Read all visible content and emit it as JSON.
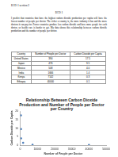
{
  "header": {
    "left": "ECO 1 section 2",
    "title": "ECO 1"
  },
  "paragraph": "I predict that countries that have the highest carbon dioxide production per capita will have the lowest number of people per doctor. The richer a country is, the more industry it has and the more doctors it can pay for. Poorer countries produce less carbon dioxide and have more people for each doctor, so health care is harder to get. My data shows this relationship between carbon dioxide production and the number of people per doctor.",
  "table": {
    "columns": [
      "Country",
      "Number of People per Doctor",
      "Carbon Dioxide per Capita"
    ],
    "rows": [
      [
        "United States",
        "390",
        "17.5"
      ],
      [
        "Japan",
        "476",
        "9.5"
      ],
      [
        "Mexico",
        "508",
        "4.0"
      ],
      [
        "India",
        "1666",
        "1.4"
      ],
      [
        "Kenya",
        "7142",
        "0.3"
      ],
      [
        "Ethiopia",
        "40000",
        "0.1"
      ]
    ]
  },
  "chart_data": {
    "type": "scatter",
    "title": "Relationship Between Carbon Dioxide Production and Number of People per Doctor per Country",
    "x_label": "Number of People per Doctor",
    "y_label": "Carbon Dioxide per Capita",
    "x": [
      390,
      476,
      508,
      1666,
      7142,
      40000
    ],
    "values": [
      17.5,
      9.5,
      4.0,
      1.4,
      0.3,
      0.1
    ],
    "color": "#4f81bd",
    "marker": "circle",
    "xlim": [
      0,
      50000
    ],
    "xticks": [
      0,
      10000,
      20000,
      30000,
      40000,
      50000
    ],
    "ylim": [
      0,
      20
    ],
    "yticks": [
      0,
      5,
      10,
      15,
      20
    ],
    "grid": false
  }
}
